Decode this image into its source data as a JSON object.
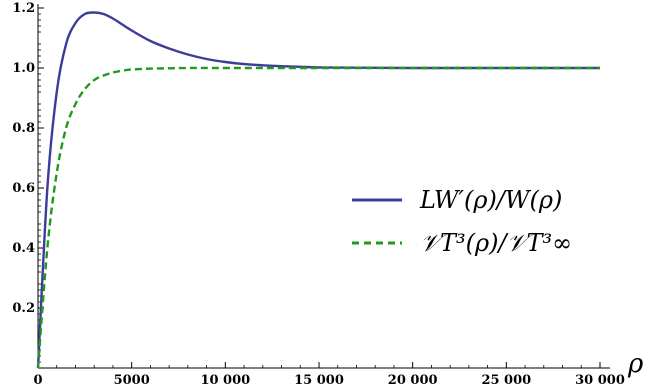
{
  "chart_data": {
    "type": "line",
    "title": "",
    "xlabel": "ρ",
    "ylabel": "",
    "xlim": [
      0,
      30000
    ],
    "ylim": [
      0,
      1.2
    ],
    "x_ticks": [
      0,
      5000,
      10000,
      15000,
      20000,
      25000,
      30000
    ],
    "x_tick_labels": [
      "0",
      "5000",
      "10 000",
      "15 000",
      "20 000",
      "25 000",
      "30 000"
    ],
    "y_ticks": [
      0.2,
      0.4,
      0.6,
      0.8,
      1.0,
      1.2
    ],
    "y_tick_labels": [
      "0.2",
      "0.4",
      "0.6",
      "0.8",
      "1.0",
      "1.2"
    ],
    "legend_position": "center-right",
    "grid": false,
    "series": [
      {
        "name": "LW′(ρ)/W(ρ)",
        "color": "#3d3d99",
        "style": "solid",
        "x": [
          0,
          500,
          1000,
          1500,
          2000,
          2500,
          3000,
          3500,
          4000,
          4500,
          5000,
          6000,
          7000,
          8000,
          9000,
          10000,
          11000,
          12000,
          13000,
          14000,
          15000,
          17000,
          20000,
          25000,
          30000
        ],
        "y": [
          0.0,
          0.6,
          0.92,
          1.08,
          1.15,
          1.18,
          1.185,
          1.18,
          1.165,
          1.145,
          1.125,
          1.09,
          1.065,
          1.045,
          1.03,
          1.02,
          1.013,
          1.009,
          1.006,
          1.004,
          1.002,
          1.001,
          1.0,
          1.0,
          1.0
        ]
      },
      {
        "name": "𝒱T³(ρ)/𝒱T³∞",
        "color": "#1f9a1f",
        "style": "dashed",
        "x": [
          0,
          500,
          1000,
          1500,
          2000,
          2500,
          3000,
          3500,
          4000,
          4500,
          5000,
          6000,
          7000,
          8000,
          10000,
          15000,
          20000,
          25000,
          30000
        ],
        "y": [
          0.0,
          0.4,
          0.65,
          0.8,
          0.88,
          0.93,
          0.96,
          0.975,
          0.985,
          0.991,
          0.995,
          0.998,
          0.999,
          1.0,
          1.0,
          1.0,
          1.0,
          1.0,
          1.0
        ]
      }
    ]
  }
}
